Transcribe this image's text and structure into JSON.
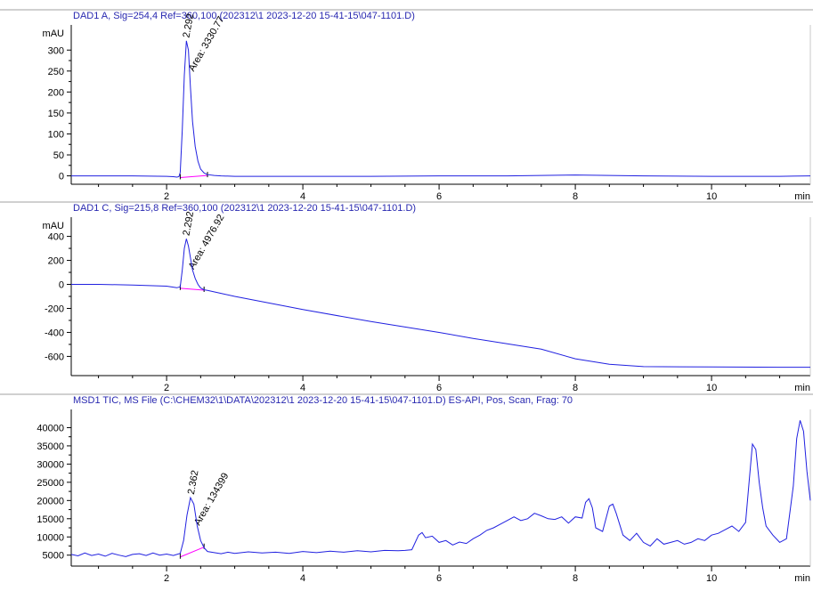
{
  "colors": {
    "trace": "#2020e0",
    "baseline": "#ff00ff",
    "title": "#2828b0",
    "axis": "#000000"
  },
  "x_unit_label": "min",
  "chart_data": [
    {
      "type": "line",
      "title": "DAD1 A, Sig=254,4 Ref=360,100 (202312\\1 2023-12-20 15-41-15\\047-1101.D)",
      "ylabel": "mAU",
      "xlim": [
        0.6,
        11.45
      ],
      "ylim": [
        -20,
        360
      ],
      "xticks": [
        2,
        4,
        6,
        8,
        10
      ],
      "yticks": [
        0,
        50,
        100,
        150,
        200,
        250,
        300
      ],
      "peaks": [
        {
          "rt_label": "2.292",
          "area_label": "Area: 3330.77",
          "x": 2.292,
          "y": 322
        }
      ],
      "integration_baselines": [
        {
          "x": [
            2.2,
            2.6
          ],
          "y": [
            -4,
            1
          ]
        }
      ],
      "series": [
        {
          "x": [
            0.6,
            1.0,
            1.5,
            2.0,
            2.1,
            2.15,
            2.18,
            2.2,
            2.23,
            2.26,
            2.29,
            2.32,
            2.35,
            2.38,
            2.42,
            2.46,
            2.5,
            2.55,
            2.6,
            2.7,
            2.8,
            3.0,
            3.5,
            4.0,
            5.0,
            6.0,
            7.0,
            8.0,
            9.0,
            10.0,
            11.0,
            11.45
          ],
          "y": [
            0,
            0,
            0,
            -1,
            -2,
            -3,
            -2,
            8,
            110,
            240,
            322,
            300,
            210,
            130,
            70,
            35,
            16,
            7,
            3,
            1,
            0,
            -1,
            -1,
            -1,
            -1,
            0,
            0,
            2,
            0,
            -1,
            -1,
            0
          ]
        }
      ]
    },
    {
      "type": "line",
      "title": "DAD1 C, Sig=215,8 Ref=360,100 (202312\\1 2023-12-20 15-41-15\\047-1101.D)",
      "ylabel": "mAU",
      "xlim": [
        0.6,
        11.45
      ],
      "ylim": [
        -760,
        560
      ],
      "xticks": [
        2,
        4,
        6,
        8,
        10
      ],
      "yticks": [
        -600,
        -400,
        -200,
        0,
        200,
        400
      ],
      "peaks": [
        {
          "rt_label": "2.292",
          "area_label": "Area: 4976.92",
          "x": 2.292,
          "y": 380
        }
      ],
      "integration_baselines": [
        {
          "x": [
            2.2,
            2.55
          ],
          "y": [
            -32,
            -48
          ]
        }
      ],
      "series": [
        {
          "x": [
            0.6,
            1.0,
            1.5,
            2.0,
            2.15,
            2.2,
            2.23,
            2.26,
            2.29,
            2.32,
            2.35,
            2.38,
            2.42,
            2.46,
            2.5,
            2.55,
            2.6,
            2.8,
            3.0,
            4.0,
            5.0,
            6.0,
            6.5,
            7.0,
            7.5,
            8.0,
            8.5,
            9.0,
            10.0,
            11.0,
            11.45
          ],
          "y": [
            0,
            0,
            -5,
            -15,
            -28,
            -20,
            120,
            300,
            380,
            320,
            220,
            120,
            50,
            0,
            -30,
            -45,
            -50,
            -75,
            -100,
            -210,
            -310,
            -400,
            -450,
            -495,
            -540,
            -620,
            -665,
            -685,
            -688,
            -690,
            -690
          ]
        }
      ]
    },
    {
      "type": "line",
      "title": "MSD1 TIC, MS File (C:\\CHEM32\\1\\DATA\\202312\\1 2023-12-20 15-41-15\\047-1101.D)     ES-API, Pos, Scan, Frag: 70",
      "ylabel": "",
      "xlim": [
        0.6,
        11.45
      ],
      "ylim": [
        2000,
        45000
      ],
      "xticks": [
        2,
        4,
        6,
        8,
        10
      ],
      "yticks": [
        5000,
        10000,
        15000,
        20000,
        25000,
        30000,
        35000,
        40000
      ],
      "peaks": [
        {
          "rt_label": "2.362",
          "area_label": "Area: 134399",
          "x": 2.362,
          "y": 20800
        }
      ],
      "integration_baselines": [
        {
          "x": [
            2.2,
            2.55
          ],
          "y": [
            4500,
            7200
          ]
        }
      ],
      "series": [
        {
          "x": [
            0.6,
            0.7,
            0.8,
            0.9,
            1.0,
            1.1,
            1.2,
            1.3,
            1.4,
            1.5,
            1.6,
            1.7,
            1.8,
            1.9,
            2.0,
            2.1,
            2.2,
            2.25,
            2.3,
            2.35,
            2.4,
            2.45,
            2.5,
            2.55,
            2.6,
            2.7,
            2.8,
            2.9,
            3.0,
            3.2,
            3.4,
            3.6,
            3.8,
            4.0,
            4.2,
            4.4,
            4.6,
            4.8,
            5.0,
            5.2,
            5.4,
            5.5,
            5.6,
            5.7,
            5.75,
            5.8,
            5.9,
            6.0,
            6.1,
            6.2,
            6.3,
            6.4,
            6.5,
            6.6,
            6.7,
            6.8,
            6.9,
            7.0,
            7.1,
            7.2,
            7.3,
            7.4,
            7.5,
            7.6,
            7.7,
            7.8,
            7.9,
            8.0,
            8.1,
            8.15,
            8.2,
            8.25,
            8.3,
            8.4,
            8.45,
            8.5,
            8.55,
            8.6,
            8.7,
            8.8,
            8.9,
            9.0,
            9.1,
            9.2,
            9.3,
            9.4,
            9.5,
            9.6,
            9.7,
            9.8,
            9.9,
            10.0,
            10.1,
            10.2,
            10.3,
            10.4,
            10.5,
            10.55,
            10.6,
            10.65,
            10.7,
            10.75,
            10.8,
            10.9,
            11.0,
            11.1,
            11.2,
            11.25,
            11.3,
            11.35,
            11.4,
            11.45
          ],
          "y": [
            5200,
            4800,
            5600,
            4900,
            5300,
            4700,
            5500,
            5000,
            4600,
            5200,
            5400,
            4900,
            5600,
            5000,
            5300,
            4900,
            5500,
            9000,
            16000,
            20800,
            19000,
            13000,
            9000,
            7000,
            6000,
            5700,
            5400,
            5800,
            5500,
            5900,
            5600,
            5800,
            5500,
            6000,
            5700,
            6100,
            5800,
            6200,
            5900,
            6300,
            6200,
            6300,
            6500,
            10500,
            11200,
            9800,
            10200,
            8500,
            9000,
            7800,
            8600,
            8200,
            9500,
            10500,
            11800,
            12500,
            13500,
            14500,
            15500,
            14500,
            15000,
            16500,
            15800,
            15000,
            14800,
            15500,
            13800,
            15500,
            15200,
            19500,
            20500,
            18000,
            12500,
            11500,
            15000,
            18500,
            19000,
            16500,
            10500,
            9000,
            11000,
            8500,
            7500,
            9500,
            8000,
            8500,
            9000,
            8000,
            8500,
            9500,
            9000,
            10500,
            11000,
            12000,
            13000,
            11500,
            14000,
            25000,
            35500,
            34000,
            25000,
            18000,
            13000,
            10500,
            8500,
            9500,
            24000,
            37000,
            42000,
            39000,
            28000,
            20000
          ]
        }
      ]
    }
  ]
}
